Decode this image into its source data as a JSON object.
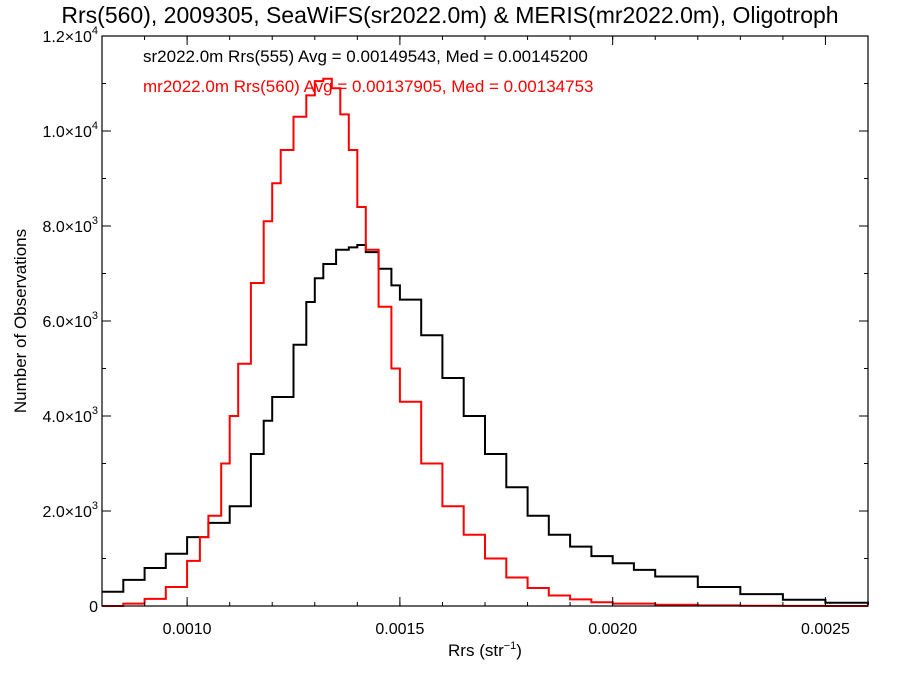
{
  "chart_data": {
    "type": "line",
    "title": "Rrs(560), 2009305, SeaWiFS(sr2022.0m) & MERIS(mr2022.0m), Oligotroph",
    "xlabel": "Rrs (str",
    "xlabel_superscript": "−1",
    "xlabel_suffix": ")",
    "ylabel": "Number of Observations",
    "xlim": [
      0.0008,
      0.0026
    ],
    "ylim": [
      0,
      12000
    ],
    "x_ticks": [
      0.001,
      0.0015,
      0.002,
      0.0025
    ],
    "x_tick_labels": [
      "0.0010",
      "0.0015",
      "0.0020",
      "0.0025"
    ],
    "y_ticks": [
      0,
      2000,
      4000,
      6000,
      8000,
      10000,
      12000
    ],
    "y_tick_labels": [
      {
        "mantissa": "0",
        "exponent": ""
      },
      {
        "mantissa": "2.0×10",
        "exponent": "3"
      },
      {
        "mantissa": "4.0×10",
        "exponent": "3"
      },
      {
        "mantissa": "6.0×10",
        "exponent": "3"
      },
      {
        "mantissa": "8.0×10",
        "exponent": "3"
      },
      {
        "mantissa": "1.0×10",
        "exponent": "4"
      },
      {
        "mantissa": "1.2×10",
        "exponent": "4"
      }
    ],
    "grid": false,
    "legend_position": "top-left",
    "series": [
      {
        "name": "sr2022.0m Rrs(555)",
        "stats_text": "sr2022.0m Rrs(555) Avg = 0.00149543, Med = 0.00145200",
        "color": "#000000",
        "x": [
          0.0008,
          0.00085,
          0.0009,
          0.00095,
          0.001,
          0.00105,
          0.0011,
          0.00115,
          0.00118,
          0.0012,
          0.00125,
          0.00128,
          0.0013,
          0.00132,
          0.00135,
          0.00138,
          0.0014,
          0.00142,
          0.00145,
          0.00148,
          0.0015,
          0.00155,
          0.0016,
          0.00165,
          0.0017,
          0.00175,
          0.0018,
          0.00185,
          0.0019,
          0.00195,
          0.002,
          0.00205,
          0.0021,
          0.0022,
          0.0023,
          0.0024,
          0.0025,
          0.0026
        ],
        "y": [
          300,
          550,
          800,
          1100,
          1450,
          1750,
          2100,
          3200,
          3900,
          4400,
          5500,
          6400,
          6900,
          7200,
          7500,
          7550,
          7600,
          7450,
          7100,
          6750,
          6450,
          5700,
          4800,
          4000,
          3200,
          2500,
          1900,
          1500,
          1250,
          1050,
          900,
          760,
          620,
          400,
          250,
          130,
          70,
          30
        ]
      },
      {
        "name": "mr2022.0m Rrs(560)",
        "stats_text": "mr2022.0m Rrs(560) Avg = 0.00137905, Med = 0.00134753",
        "color": "#ff0000",
        "x": [
          0.0008,
          0.00085,
          0.0009,
          0.00095,
          0.001,
          0.00103,
          0.00105,
          0.00108,
          0.0011,
          0.00112,
          0.00115,
          0.00118,
          0.0012,
          0.00122,
          0.00125,
          0.00128,
          0.0013,
          0.00132,
          0.00134,
          0.00136,
          0.00138,
          0.0014,
          0.00142,
          0.00145,
          0.00148,
          0.0015,
          0.00155,
          0.0016,
          0.00165,
          0.0017,
          0.00175,
          0.0018,
          0.00185,
          0.0019,
          0.00195,
          0.002,
          0.0021,
          0.0022,
          0.0023,
          0.0024,
          0.0025,
          0.0026
        ],
        "y": [
          0,
          50,
          150,
          400,
          950,
          1450,
          1900,
          3000,
          4000,
          5100,
          6800,
          8100,
          8900,
          9600,
          10300,
          10750,
          11050,
          11100,
          10900,
          10350,
          9600,
          8400,
          7500,
          6300,
          5000,
          4300,
          3000,
          2100,
          1500,
          1000,
          600,
          380,
          220,
          140,
          80,
          50,
          25,
          12,
          6,
          3,
          1,
          0
        ]
      }
    ]
  }
}
